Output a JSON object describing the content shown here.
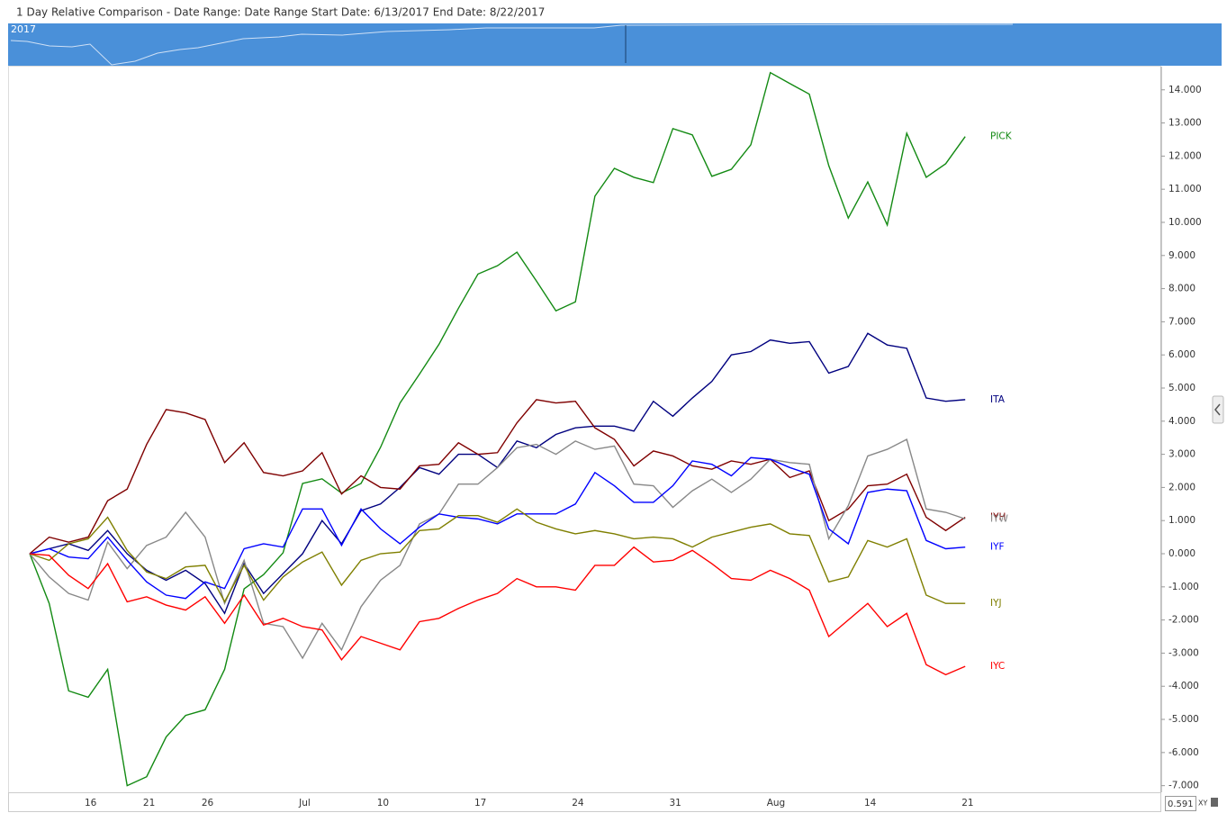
{
  "header": {
    "title": "1 Day Relative Comparison - Date Range: Date Range  Start Date: 6/13/2017  End Date: 8/22/2017"
  },
  "navigator": {
    "label": "2017"
  },
  "footer": {
    "value": "0.591",
    "mode": "XY"
  },
  "chart_data": {
    "type": "line",
    "categories": [
      null,
      null,
      null,
      "16",
      null,
      null,
      "21",
      null,
      null,
      "26",
      null,
      null,
      null,
      null,
      "Jul",
      null,
      null,
      null,
      "10",
      null,
      null,
      null,
      null,
      "17",
      null,
      null,
      null,
      null,
      "24",
      null,
      null,
      null,
      null,
      "31",
      null,
      null,
      null,
      null,
      "Aug",
      null,
      null,
      null,
      null,
      "14",
      null,
      null,
      null,
      null,
      "21"
    ],
    "ylim": [
      -7.2,
      14.7
    ],
    "yticks": [
      {
        "value": -7,
        "label": "-7.000"
      },
      {
        "value": -6,
        "label": "-6.000"
      },
      {
        "value": -5,
        "label": "-5.000"
      },
      {
        "value": -4,
        "label": "-4.000"
      },
      {
        "value": -3,
        "label": "-3.000"
      },
      {
        "value": -2,
        "label": "-2.000"
      },
      {
        "value": -1,
        "label": "-1.000"
      },
      {
        "value": 0,
        "label": "0.000"
      },
      {
        "value": 1,
        "label": "1.000"
      },
      {
        "value": 2,
        "label": "2.000"
      },
      {
        "value": 3,
        "label": "3.000"
      },
      {
        "value": 4,
        "label": "4.000"
      },
      {
        "value": 5,
        "label": "5.000"
      },
      {
        "value": 6,
        "label": "6.000"
      },
      {
        "value": 7,
        "label": "7.000"
      },
      {
        "value": 8,
        "label": "8.000"
      },
      {
        "value": 9,
        "label": "9.000"
      },
      {
        "value": 10,
        "label": "10.000"
      },
      {
        "value": 11,
        "label": "11.000"
      },
      {
        "value": 12,
        "label": "12.000"
      },
      {
        "value": 13,
        "label": "13.000"
      },
      {
        "value": 14,
        "label": "14.000"
      }
    ],
    "series": [
      {
        "name": "PICK",
        "color": "#138a13",
        "values": [
          0,
          -1.5,
          -4.14,
          -4.33,
          -3.49,
          -7.0,
          -6.73,
          -5.53,
          -4.88,
          -4.71,
          -3.49,
          -1.06,
          -0.63,
          0.03,
          2.12,
          2.26,
          1.83,
          2.12,
          3.21,
          4.55,
          5.42,
          6.32,
          7.41,
          8.44,
          8.69,
          9.1,
          8.23,
          7.33,
          7.6,
          10.79,
          11.63,
          11.36,
          11.2,
          12.83,
          12.64,
          11.39,
          11.6,
          12.34,
          14.52,
          14.19,
          13.87,
          11.71,
          10.13,
          11.22,
          9.92,
          12.69,
          11.36,
          11.77,
          12.59
        ]
      },
      {
        "name": "ITA",
        "color": "#00007f",
        "values": [
          0,
          0.15,
          0.3,
          0.1,
          0.7,
          0,
          -0.5,
          -0.8,
          -0.5,
          -0.9,
          -1.8,
          -0.3,
          -1.2,
          -0.6,
          0,
          1.0,
          0.3,
          1.3,
          1.5,
          2.0,
          2.6,
          2.4,
          3.0,
          3.0,
          2.6,
          3.4,
          3.2,
          3.6,
          3.8,
          3.85,
          3.85,
          3.7,
          4.6,
          4.15,
          4.7,
          5.2,
          6.0,
          6.1,
          6.45,
          6.35,
          6.4,
          5.45,
          5.65,
          6.65,
          6.3,
          6.2,
          4.7,
          4.6,
          4.65
        ]
      },
      {
        "name": "IYH",
        "color": "#7f0000",
        "values": [
          0,
          0.5,
          0.35,
          0.5,
          1.6,
          1.95,
          3.3,
          4.35,
          4.25,
          4.05,
          2.75,
          3.35,
          2.45,
          2.35,
          2.5,
          3.05,
          1.8,
          2.35,
          2.0,
          1.95,
          2.65,
          2.7,
          3.35,
          3.0,
          3.05,
          3.95,
          4.65,
          4.55,
          4.6,
          3.8,
          3.45,
          2.65,
          3.1,
          2.95,
          2.65,
          2.55,
          2.8,
          2.7,
          2.85,
          2.3,
          2.5,
          1.0,
          1.35,
          2.05,
          2.1,
          2.4,
          1.1,
          0.7,
          1.1
        ]
      },
      {
        "name": "IYW",
        "color": "#888888",
        "values": [
          0,
          -0.7,
          -1.2,
          -1.4,
          0.35,
          -0.45,
          0.25,
          0.5,
          1.25,
          0.5,
          -1.5,
          -0.2,
          -2.1,
          -2.2,
          -3.15,
          -2.1,
          -2.9,
          -1.6,
          -0.8,
          -0.35,
          0.9,
          1.2,
          2.1,
          2.1,
          2.6,
          3.2,
          3.3,
          3.0,
          3.4,
          3.15,
          3.25,
          2.1,
          2.05,
          1.4,
          1.9,
          2.25,
          1.85,
          2.25,
          2.85,
          2.75,
          2.7,
          0.45,
          1.45,
          2.95,
          3.15,
          3.45,
          1.35,
          1.25,
          1.05
        ]
      },
      {
        "name": "IYF",
        "color": "#0000ff",
        "values": [
          0,
          0.15,
          -0.1,
          -0.15,
          0.5,
          -0.2,
          -0.85,
          -1.25,
          -1.35,
          -0.85,
          -1.05,
          0.15,
          0.3,
          0.2,
          1.35,
          1.35,
          0.25,
          1.35,
          0.75,
          0.3,
          0.8,
          1.2,
          1.1,
          1.05,
          0.9,
          1.2,
          1.2,
          1.2,
          1.5,
          2.45,
          2.05,
          1.55,
          1.55,
          2.05,
          2.8,
          2.7,
          2.35,
          2.9,
          2.85,
          2.6,
          2.4,
          0.75,
          0.3,
          1.85,
          1.95,
          1.9,
          0.4,
          0.15,
          0.2
        ]
      },
      {
        "name": "IYJ",
        "color": "#7f7f00",
        "values": [
          0,
          -0.2,
          0.3,
          0.45,
          1.1,
          0.1,
          -0.55,
          -0.75,
          -0.4,
          -0.35,
          -1.45,
          -0.35,
          -1.4,
          -0.7,
          -0.25,
          0.05,
          -0.95,
          -0.2,
          0,
          0.05,
          0.7,
          0.75,
          1.15,
          1.15,
          0.95,
          1.35,
          0.95,
          0.75,
          0.6,
          0.7,
          0.6,
          0.45,
          0.5,
          0.45,
          0.2,
          0.5,
          0.65,
          0.8,
          0.9,
          0.6,
          0.55,
          -0.85,
          -0.7,
          0.4,
          0.2,
          0.45,
          -1.25,
          -1.5,
          -1.5
        ]
      },
      {
        "name": "IYC",
        "color": "#ff0000",
        "values": [
          0,
          -0.05,
          -0.65,
          -1.05,
          -0.3,
          -1.45,
          -1.3,
          -1.55,
          -1.7,
          -1.3,
          -2.1,
          -1.25,
          -2.15,
          -1.95,
          -2.2,
          -2.3,
          -3.2,
          -2.5,
          -2.7,
          -2.9,
          -2.05,
          -1.95,
          -1.65,
          -1.4,
          -1.2,
          -0.75,
          -1.0,
          -1.0,
          -1.1,
          -0.35,
          -0.35,
          0.2,
          -0.25,
          -0.2,
          0.1,
          -0.3,
          -0.75,
          -0.8,
          -0.5,
          -0.75,
          -1.1,
          -2.5,
          -2.0,
          -1.5,
          -2.2,
          -1.8,
          -3.35,
          -3.65,
          -3.4
        ]
      }
    ]
  }
}
